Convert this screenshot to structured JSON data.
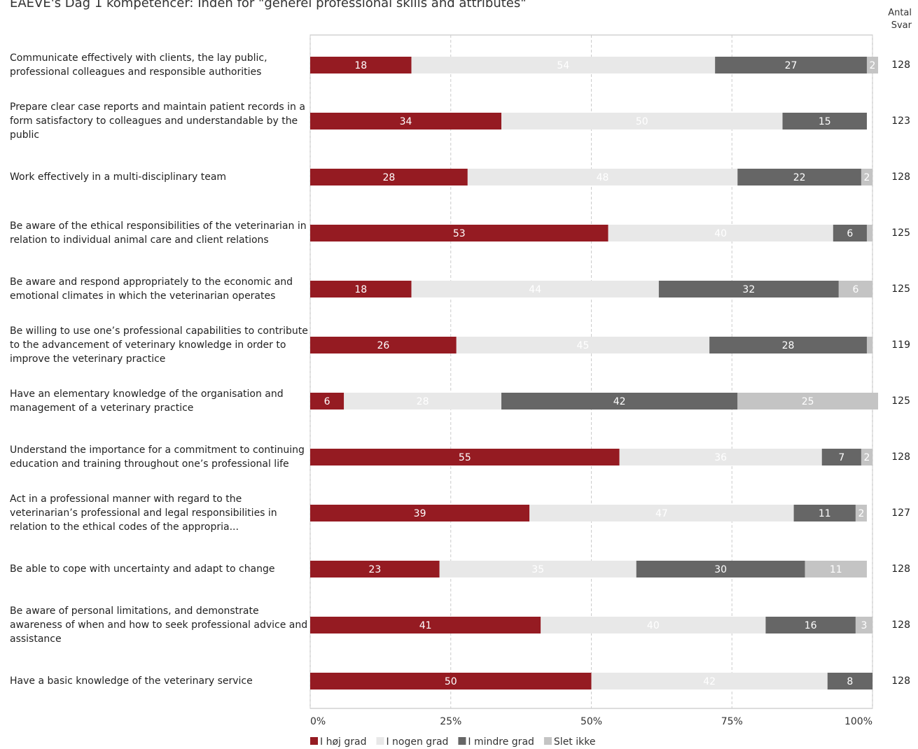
{
  "chart_data": {
    "type": "stacked-bar-horizontal",
    "title": "EAEVE's Dag 1 kompetencer: Inden for \"generel professional skills and attributes\"",
    "count_header": "Antal Svar",
    "categories": [
      "Communicate effectively with clients, the lay public, professional colleagues and responsible authorities",
      "Prepare clear case reports and maintain patient records in a form satisfactory to colleagues and understandable by the public",
      "Work effectively in a multi-disciplinary team",
      "Be aware of the ethical responsibilities of the veterinarian in relation to individual animal care and client relations",
      "Be aware and respond appropriately to the economic and emotional climates in which the veterinarian operates",
      "Be willing to use one’s professional capabilities to contribute to the advancement of veterinary knowledge in order to improve the veterinary practice",
      "Have an elementary knowledge of the organisation and management of a veterinary practice",
      "Understand the importance for a commitment to continuing education and training throughout one’s professional life",
      "Act in a professional manner with regard to the veterinarian’s professional and legal responsibilities in relation to the ethical codes of the appropria...",
      "Be able to cope with uncertainty and adapt to change",
      "Be aware of personal limitations, and demonstrate awareness of when and how to seek professional advice and assistance",
      "Have a basic knowledge of the veterinary service"
    ],
    "series": [
      {
        "name": "I høj grad",
        "color": "#951b22",
        "values": [
          18,
          34,
          28,
          53,
          18,
          26,
          6,
          55,
          39,
          23,
          41,
          50
        ]
      },
      {
        "name": "I nogen grad",
        "color": "#e8e8e8",
        "values": [
          54,
          50,
          48,
          40,
          44,
          45,
          28,
          36,
          47,
          35,
          40,
          42
        ]
      },
      {
        "name": "I mindre grad",
        "color": "#666666",
        "values": [
          27,
          15,
          22,
          6,
          32,
          28,
          42,
          7,
          11,
          30,
          16,
          8
        ]
      },
      {
        "name": "Slet ikke",
        "color": "#c4c4c4",
        "values": [
          2,
          0,
          2,
          1,
          6,
          1,
          25,
          2,
          2,
          11,
          3,
          0
        ],
        "value_labels": [
          "2",
          null,
          "2",
          null,
          "6",
          null,
          "25",
          "2",
          "2",
          "11",
          "3",
          null
        ]
      }
    ],
    "counts": [
      128,
      123,
      128,
      125,
      125,
      119,
      125,
      128,
      127,
      128,
      128,
      128
    ],
    "xlim": [
      0,
      100
    ],
    "xticks": [
      {
        "value": 0,
        "label": "0%"
      },
      {
        "value": 25,
        "label": "25%"
      },
      {
        "value": 50,
        "label": "50%"
      },
      {
        "value": 75,
        "label": "75%"
      },
      {
        "value": 100,
        "label": "100%"
      }
    ],
    "grid": true
  }
}
